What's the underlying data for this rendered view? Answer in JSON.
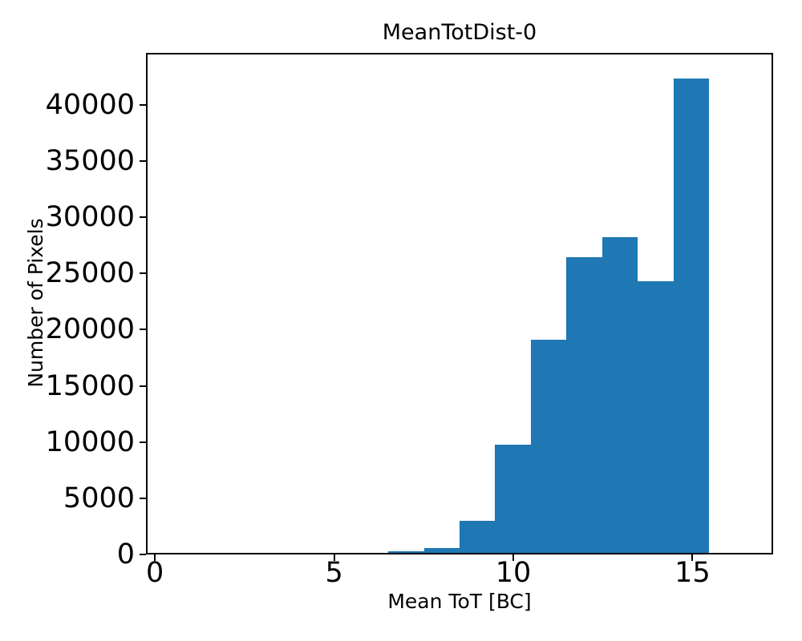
{
  "figure": {
    "title": "MeanTotDist-0",
    "xlabel": "Mean ToT [BC]",
    "ylabel": "Number of Pixels"
  },
  "chart_data": {
    "type": "bar",
    "subtype": "histogram",
    "title": "MeanTotDist-0",
    "xlabel": "Mean ToT [BC]",
    "ylabel": "Number of Pixels",
    "bar_color": "#1f77b4",
    "background_color": "#ffffff",
    "spine_color": "#000000",
    "grid": false,
    "legend": null,
    "bin_edges": [
      0.5,
      1.5,
      2.5,
      3.5,
      4.5,
      5.5,
      6.5,
      7.5,
      8.5,
      9.5,
      10.5,
      11.5,
      12.5,
      13.5,
      14.5,
      15.5,
      16.5
    ],
    "counts": [
      0,
      0,
      0,
      0,
      0,
      0,
      150,
      400,
      2900,
      9700,
      19050,
      26450,
      28300,
      24350,
      42500,
      0
    ],
    "xlim": [
      -0.25,
      17.25
    ],
    "ylim": [
      0,
      44625
    ],
    "xticks": [
      0,
      5,
      10,
      15
    ],
    "xtick_labels": [
      "0",
      "5",
      "10",
      "15"
    ],
    "yticks": [
      0,
      5000,
      10000,
      15000,
      20000,
      25000,
      30000,
      35000,
      40000
    ],
    "ytick_labels": [
      "0",
      "5000",
      "10000",
      "15000",
      "20000",
      "25000",
      "30000",
      "35000",
      "40000"
    ]
  }
}
